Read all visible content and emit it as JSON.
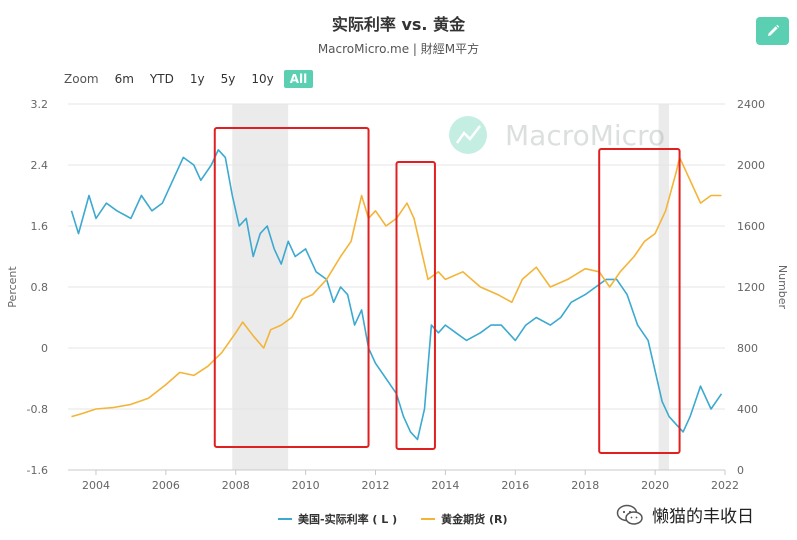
{
  "header": {
    "title": "实际利率 vs. 黄金",
    "subtitle": "MacroMicro.me | 財經M平方"
  },
  "toolbar": {
    "zoom_label": "Zoom",
    "ranges": [
      "6m",
      "YTD",
      "1y",
      "5y",
      "10y",
      "All"
    ],
    "active_range": "All",
    "edit_icon": "pencil-icon"
  },
  "colors": {
    "real_rate": "#3ca9d0",
    "gold": "#f3b437",
    "accent": "#5bcfb2",
    "highlight_box": "#e02020",
    "recession_band": "#ebebeb",
    "grid": "#e6e6e6"
  },
  "watermark": {
    "logo_text": "MacroMicro",
    "wechat_text": "懒猫的丰收日",
    "wechat_icon": "wechat-icon"
  },
  "chart_data": {
    "type": "line",
    "title": "实际利率 vs. 黄金",
    "subtitle": "MacroMicro.me | 財經M平方",
    "x_ticks": [
      "2004",
      "2006",
      "2008",
      "2010",
      "2012",
      "2014",
      "2016",
      "2018",
      "2020",
      "2022"
    ],
    "xlim": [
      2003.2,
      2022.0
    ],
    "left_axis": {
      "label": "Percent",
      "ticks": [
        "3.2",
        "2.4",
        "1.6",
        "0.8",
        "0",
        "-0.8",
        "-1.6"
      ],
      "ylim": [
        -1.6,
        3.2
      ]
    },
    "right_axis": {
      "label": "Number",
      "ticks": [
        "2400",
        "2000",
        "1600",
        "1200",
        "800",
        "400",
        "0"
      ],
      "ylim": [
        0,
        2400
      ]
    },
    "grid": "horizontal",
    "legend_position": "bottom-center",
    "shaded_periods": [
      [
        2007.9,
        2009.5
      ],
      [
        2020.1,
        2020.4
      ]
    ],
    "highlight_boxes": [
      [
        2007.4,
        2011.8
      ],
      [
        2012.6,
        2013.7
      ],
      [
        2018.4,
        2020.7
      ]
    ],
    "series": [
      {
        "name": "美国-实际利率 ( L )",
        "axis": "left",
        "x": [
          2003.3,
          2003.5,
          2003.8,
          2004.0,
          2004.3,
          2004.6,
          2005.0,
          2005.3,
          2005.6,
          2005.9,
          2006.2,
          2006.5,
          2006.8,
          2007.0,
          2007.3,
          2007.5,
          2007.7,
          2007.9,
          2008.1,
          2008.3,
          2008.5,
          2008.7,
          2008.9,
          2009.1,
          2009.3,
          2009.5,
          2009.7,
          2010.0,
          2010.3,
          2010.6,
          2010.8,
          2011.0,
          2011.2,
          2011.4,
          2011.6,
          2011.8,
          2012.0,
          2012.3,
          2012.6,
          2012.8,
          2013.0,
          2013.2,
          2013.4,
          2013.6,
          2013.8,
          2014.0,
          2014.3,
          2014.6,
          2015.0,
          2015.3,
          2015.6,
          2016.0,
          2016.3,
          2016.6,
          2017.0,
          2017.3,
          2017.6,
          2018.0,
          2018.3,
          2018.6,
          2018.9,
          2019.2,
          2019.5,
          2019.8,
          2020.0,
          2020.2,
          2020.4,
          2020.6,
          2020.8,
          2021.0,
          2021.3,
          2021.6,
          2021.9
        ],
        "values": [
          1.8,
          1.5,
          2.0,
          1.7,
          1.9,
          1.8,
          1.7,
          2.0,
          1.8,
          1.9,
          2.2,
          2.5,
          2.4,
          2.2,
          2.4,
          2.6,
          2.5,
          2.0,
          1.6,
          1.7,
          1.2,
          1.5,
          1.6,
          1.3,
          1.1,
          1.4,
          1.2,
          1.3,
          1.0,
          0.9,
          0.6,
          0.8,
          0.7,
          0.3,
          0.5,
          0.0,
          -0.2,
          -0.4,
          -0.6,
          -0.9,
          -1.1,
          -1.2,
          -0.8,
          0.3,
          0.2,
          0.3,
          0.2,
          0.1,
          0.2,
          0.3,
          0.3,
          0.1,
          0.3,
          0.4,
          0.3,
          0.4,
          0.6,
          0.7,
          0.8,
          0.9,
          0.9,
          0.7,
          0.3,
          0.1,
          -0.3,
          -0.7,
          -0.9,
          -1.0,
          -1.1,
          -0.9,
          -0.5,
          -0.8,
          -0.6
        ]
      },
      {
        "name": "黄金期货 (R)",
        "axis": "right",
        "x": [
          2003.3,
          2003.6,
          2004.0,
          2004.5,
          2005.0,
          2005.5,
          2006.0,
          2006.4,
          2006.8,
          2007.2,
          2007.6,
          2008.0,
          2008.2,
          2008.5,
          2008.8,
          2009.0,
          2009.3,
          2009.6,
          2009.9,
          2010.2,
          2010.6,
          2011.0,
          2011.3,
          2011.6,
          2011.8,
          2012.0,
          2012.3,
          2012.6,
          2012.9,
          2013.1,
          2013.3,
          2013.5,
          2013.8,
          2014.0,
          2014.5,
          2015.0,
          2015.5,
          2015.9,
          2016.2,
          2016.6,
          2017.0,
          2017.5,
          2018.0,
          2018.4,
          2018.7,
          2019.0,
          2019.4,
          2019.7,
          2020.0,
          2020.3,
          2020.6,
          2020.7,
          2021.0,
          2021.3,
          2021.6,
          2021.9
        ],
        "values": [
          350,
          370,
          400,
          410,
          430,
          470,
          560,
          640,
          620,
          680,
          770,
          900,
          970,
          880,
          800,
          920,
          950,
          1000,
          1120,
          1150,
          1250,
          1400,
          1500,
          1800,
          1650,
          1700,
          1600,
          1650,
          1750,
          1650,
          1450,
          1250,
          1300,
          1250,
          1300,
          1200,
          1150,
          1100,
          1250,
          1330,
          1200,
          1250,
          1320,
          1300,
          1200,
          1300,
          1400,
          1500,
          1550,
          1700,
          1950,
          2050,
          1900,
          1750,
          1800,
          1800
        ]
      }
    ]
  }
}
